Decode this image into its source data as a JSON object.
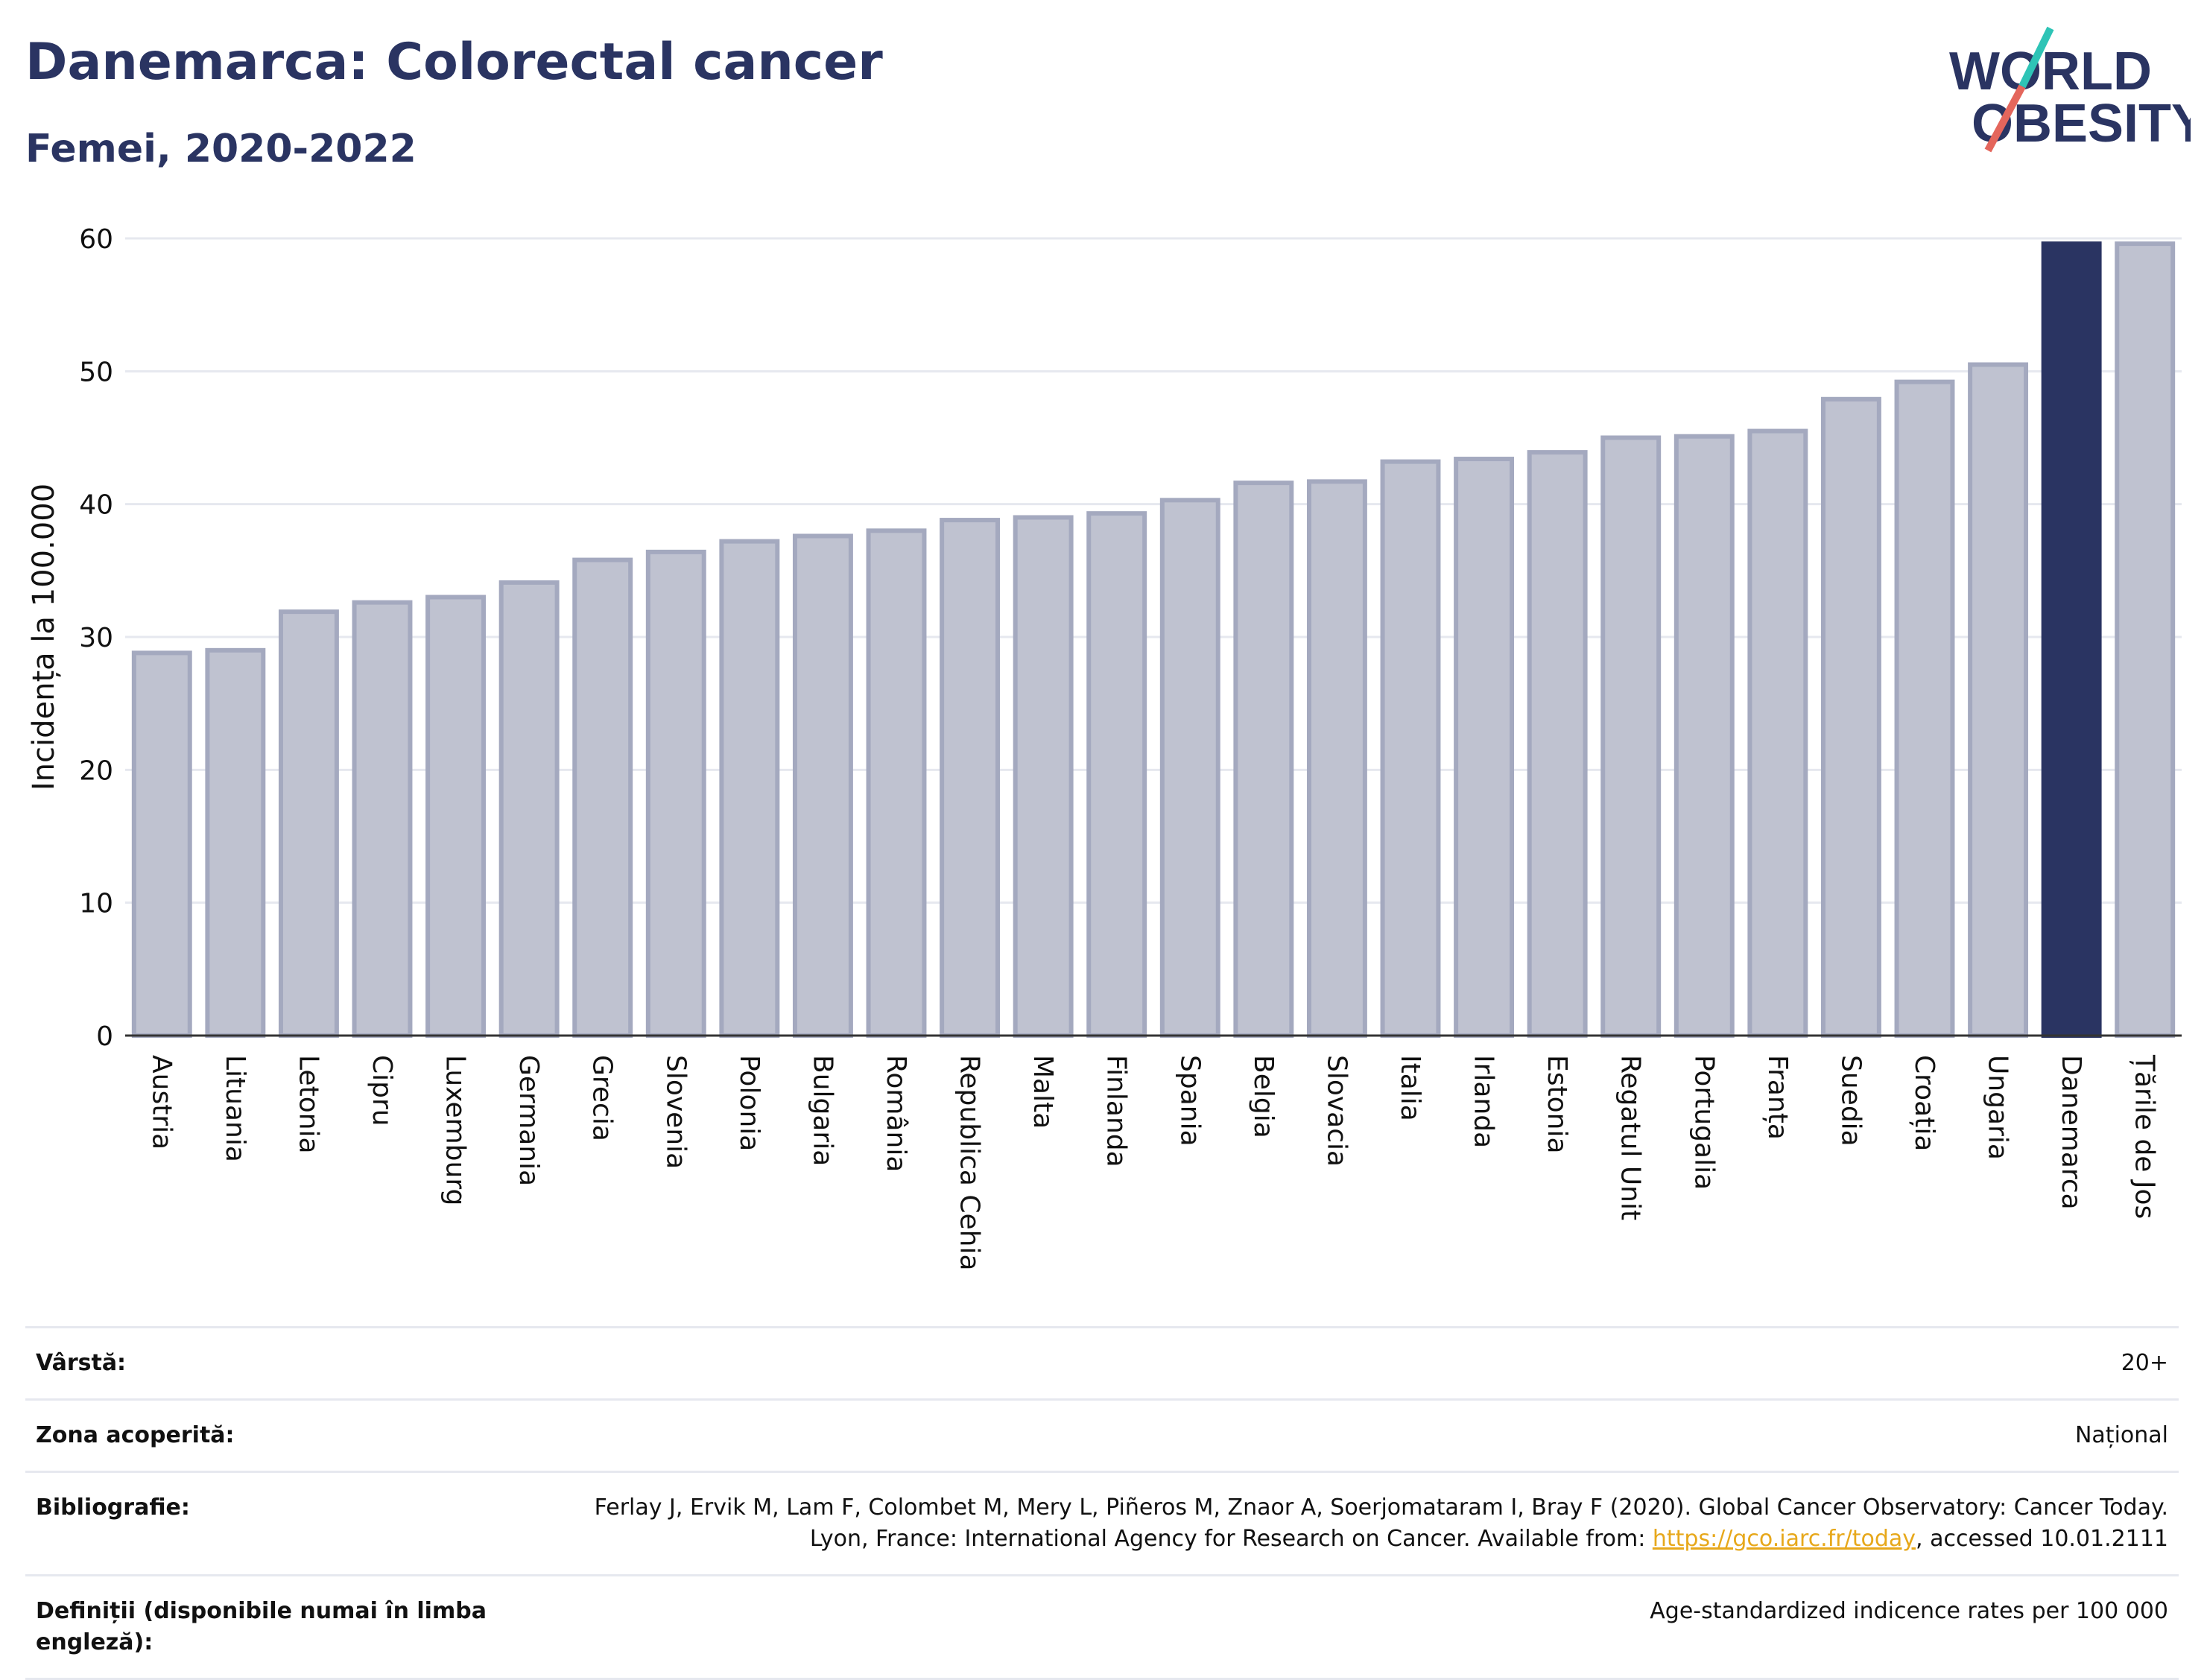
{
  "header": {
    "title": "Danemarca: Colorectal cancer",
    "subtitle": "Femei, 2020-2022"
  },
  "logo": {
    "line1": "WORLD",
    "line2": "OBESITY",
    "colors": {
      "text": "#2a3462",
      "slash_top": "#2ec4b6",
      "slash_bottom": "#e4665c"
    }
  },
  "colors": {
    "bar_fill": "#bfc2d0",
    "bar_stroke": "#a4a9bf",
    "highlight": "#2a3462",
    "grid": "#e6e8ef",
    "axis": "#333333"
  },
  "chart_data": {
    "type": "bar",
    "title": "Danemarca: Colorectal cancer",
    "subtitle": "Femei, 2020-2022",
    "xlabel": "",
    "ylabel": "Incidența la 100.000",
    "ylim": [
      0,
      60
    ],
    "yticks": [
      0,
      10,
      20,
      30,
      40,
      50,
      60
    ],
    "grid": true,
    "highlight": "Danemarca",
    "categories": [
      "Austria",
      "Lituania",
      "Letonia",
      "Cipru",
      "Luxemburg",
      "Germania",
      "Grecia",
      "Slovenia",
      "Polonia",
      "Bulgaria",
      "România",
      "Republica Cehia",
      "Malta",
      "Finlanda",
      "Spania",
      "Belgia",
      "Slovacia",
      "Italia",
      "Irlanda",
      "Estonia",
      "Regatul Unit",
      "Portugalia",
      "Franța",
      "Suedia",
      "Croația",
      "Ungaria",
      "Danemarca",
      "Țările de Jos"
    ],
    "values": [
      28.8,
      29.0,
      31.9,
      32.6,
      33.0,
      34.1,
      35.8,
      36.4,
      37.2,
      37.6,
      38.0,
      38.8,
      39.0,
      39.3,
      40.3,
      41.6,
      41.7,
      43.2,
      43.4,
      43.9,
      45.0,
      45.1,
      45.5,
      47.9,
      49.2,
      50.5,
      59.6,
      59.6
    ]
  },
  "info": {
    "rows": [
      {
        "label": "Vârstă:",
        "value": "20+"
      },
      {
        "label": "Zona acoperită:",
        "value": "Național"
      },
      {
        "label": "Bibliografie:",
        "value_pre": "Ferlay J, Ervik M, Lam F, Colombet M, Mery L, Piñeros M, Znaor A, Soerjomataram I, Bray F (2020). Global Cancer Observatory: Cancer Today. Lyon, France: International Agency for Research on Cancer. Available from: ",
        "link": "https://gco.iarc.fr/today",
        "value_post": ", accessed 10.01.2111"
      },
      {
        "label": "Definiții (disponibile numai în limba engleză):",
        "value": "Age-standardized indicence rates per 100 000"
      }
    ]
  }
}
